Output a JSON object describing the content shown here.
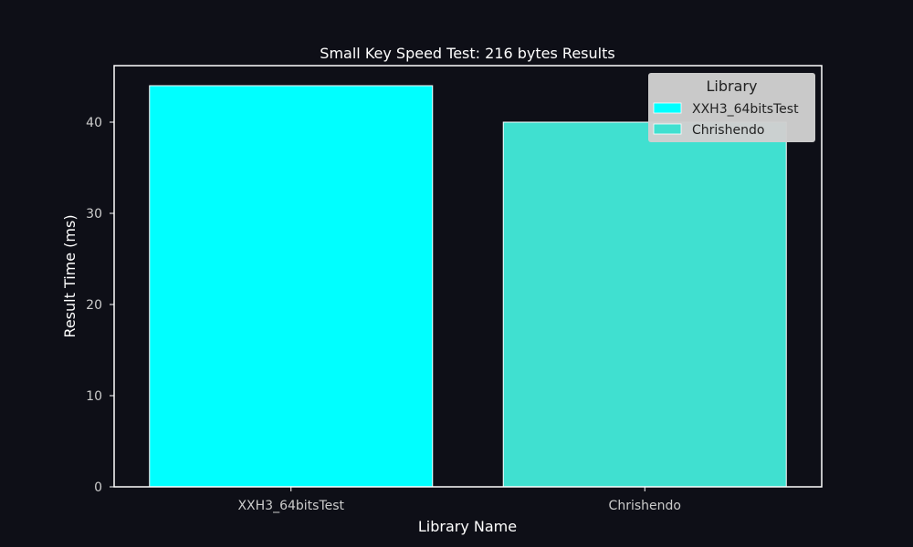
{
  "chart_data": {
    "type": "bar",
    "title": "Small Key Speed Test: 216 bytes Results",
    "xlabel": "Library Name",
    "ylabel": "Result Time (ms)",
    "categories": [
      "XXH3_64bitsTest",
      "Chrishendo"
    ],
    "series": [
      {
        "name": "XXH3_64bitsTest",
        "values": [
          44,
          null
        ],
        "color": "#00ffff"
      },
      {
        "name": "Chrishendo",
        "values": [
          null,
          40
        ],
        "color": "#40e0d0"
      }
    ],
    "values": [
      44,
      40
    ],
    "ylim": [
      0,
      46.2
    ],
    "yticks": [
      0,
      10,
      20,
      30,
      40
    ],
    "grid": false,
    "legend": {
      "title": "Library",
      "placement": "top-right",
      "entries": [
        "XXH3_64bitsTest",
        "Chrishendo"
      ]
    },
    "colors": {
      "background": "#0e0f17",
      "axes": "#ffffff",
      "text": "#ffffff",
      "tick_text": "#cccccc",
      "legend_bg": "#cfcfd0",
      "legend_text": "#222222",
      "bar_edge": "#ffffff"
    }
  }
}
